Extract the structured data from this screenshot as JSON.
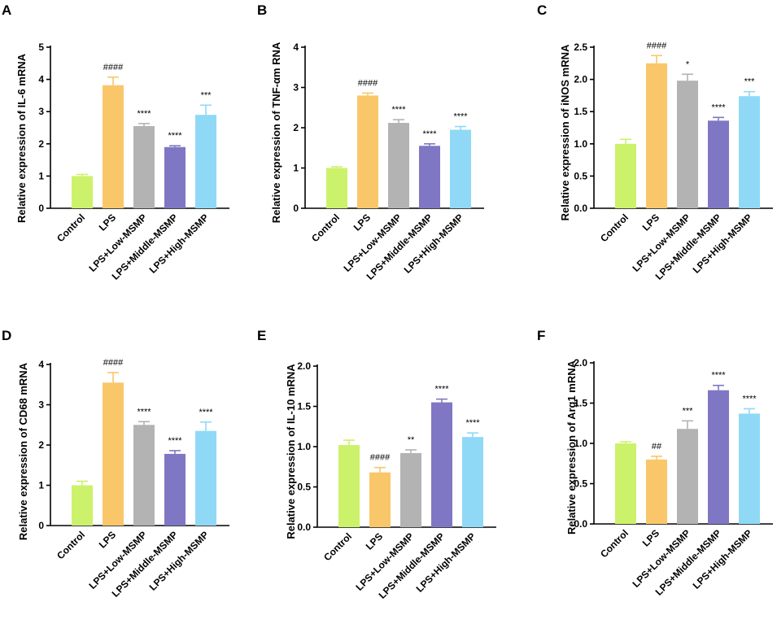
{
  "colors": {
    "Control": "#ccf26b",
    "LPS": "#f9c76a",
    "LPS+Low-MSMP": "#b3b3b3",
    "LPS+Middle-MSMP": "#7f77c3",
    "LPS+High-MSMP": "#8fd9f7"
  },
  "chart_data": [
    {
      "panel": "A",
      "type": "bar",
      "ylabel": "Relative expression of IL-6 mRNA",
      "ylim": [
        0,
        5
      ],
      "yticks": [
        "0",
        "1",
        "2",
        "3",
        "4",
        "5"
      ],
      "categories": [
        "Control",
        "LPS",
        "LPS+Low-MSMP",
        "LPS+Middle-MSMP",
        "LPS+High-MSMP"
      ],
      "values": [
        1.0,
        3.82,
        2.55,
        1.9,
        2.9
      ],
      "errors": [
        0.05,
        0.25,
        0.08,
        0.04,
        0.3
      ],
      "significance": [
        "",
        "####",
        "****",
        "****",
        "***"
      ]
    },
    {
      "panel": "B",
      "type": "bar",
      "ylabel": "Relative expression of TNF-αm RNA",
      "ylim": [
        0,
        4
      ],
      "yticks": [
        "0",
        "1",
        "2",
        "3",
        "4"
      ],
      "categories": [
        "Control",
        "LPS",
        "LPS+Low-MSMP",
        "LPS+Middle-MSMP",
        "LPS+High-MSMP"
      ],
      "values": [
        1.0,
        2.8,
        2.12,
        1.55,
        1.95
      ],
      "errors": [
        0.03,
        0.06,
        0.08,
        0.05,
        0.08
      ],
      "significance": [
        "",
        "####",
        "****",
        "****",
        "****"
      ]
    },
    {
      "panel": "C",
      "type": "bar",
      "ylabel": "Relative expression of iNOS mRNA",
      "ylim": [
        0,
        2.5
      ],
      "yticks": [
        "0.0",
        "0.5",
        "1.0",
        "1.5",
        "2.0",
        "2.5"
      ],
      "categories": [
        "Control",
        "LPS",
        "LPS+Low-MSMP",
        "LPS+Middle-MSMP",
        "LPS+High-MSMP"
      ],
      "values": [
        1.0,
        2.25,
        1.98,
        1.36,
        1.74
      ],
      "errors": [
        0.07,
        0.12,
        0.1,
        0.05,
        0.07
      ],
      "significance": [
        "",
        "####",
        "*",
        "****",
        "***"
      ]
    },
    {
      "panel": "D",
      "type": "bar",
      "ylabel": "Relative expression of CD68 mRNA",
      "ylim": [
        0,
        4
      ],
      "yticks": [
        "0",
        "1",
        "2",
        "3",
        "4"
      ],
      "categories": [
        "Control",
        "LPS",
        "LPS+Low-MSMP",
        "LPS+Middle-MSMP",
        "LPS+High-MSMP"
      ],
      "values": [
        1.0,
        3.55,
        2.5,
        1.78,
        2.35
      ],
      "errors": [
        0.1,
        0.25,
        0.08,
        0.08,
        0.22
      ],
      "significance": [
        "",
        "####",
        "****",
        "****",
        "****"
      ]
    },
    {
      "panel": "E",
      "type": "bar",
      "ylabel": "Relative expression of IL-10 mRNA",
      "ylim": [
        0,
        2.0
      ],
      "yticks": [
        "0.0",
        "0.5",
        "1.0",
        "1.5",
        "2.0"
      ],
      "categories": [
        "Control",
        "LPS",
        "LPS+Low-MSMP",
        "LPS+Middle-MSMP",
        "LPS+High-MSMP"
      ],
      "values": [
        1.02,
        0.68,
        0.92,
        1.55,
        1.12
      ],
      "errors": [
        0.06,
        0.06,
        0.04,
        0.04,
        0.05
      ],
      "significance": [
        "",
        "####",
        "**",
        "****",
        "****"
      ]
    },
    {
      "panel": "F",
      "type": "bar",
      "ylabel": "Relative expression of  Arg1 mRNA",
      "ylim": [
        0,
        2.0
      ],
      "yticks": [
        "0.0",
        "0.5",
        "1.0",
        "1.5",
        "2.0"
      ],
      "categories": [
        "Control",
        "LPS",
        "LPS+Low-MSMP",
        "LPS+Middle-MSMP",
        "LPS+High-MSMP"
      ],
      "values": [
        1.0,
        0.8,
        1.18,
        1.66,
        1.37
      ],
      "errors": [
        0.02,
        0.04,
        0.1,
        0.06,
        0.06
      ],
      "significance": [
        "",
        "##",
        "***",
        "****",
        "****"
      ]
    }
  ]
}
